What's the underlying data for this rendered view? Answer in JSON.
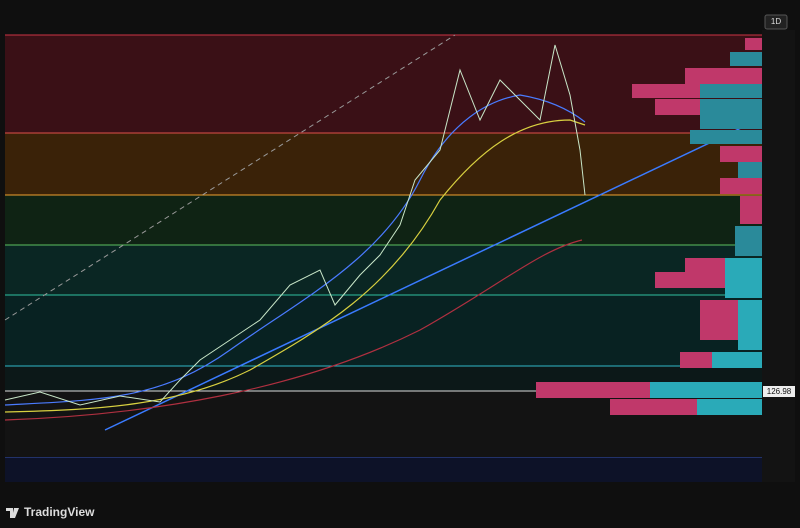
{
  "header": {
    "interval": "1D"
  },
  "price_axis": {
    "marker_label": "126.98"
  },
  "footer": {
    "brand": "TradingView"
  }
}
